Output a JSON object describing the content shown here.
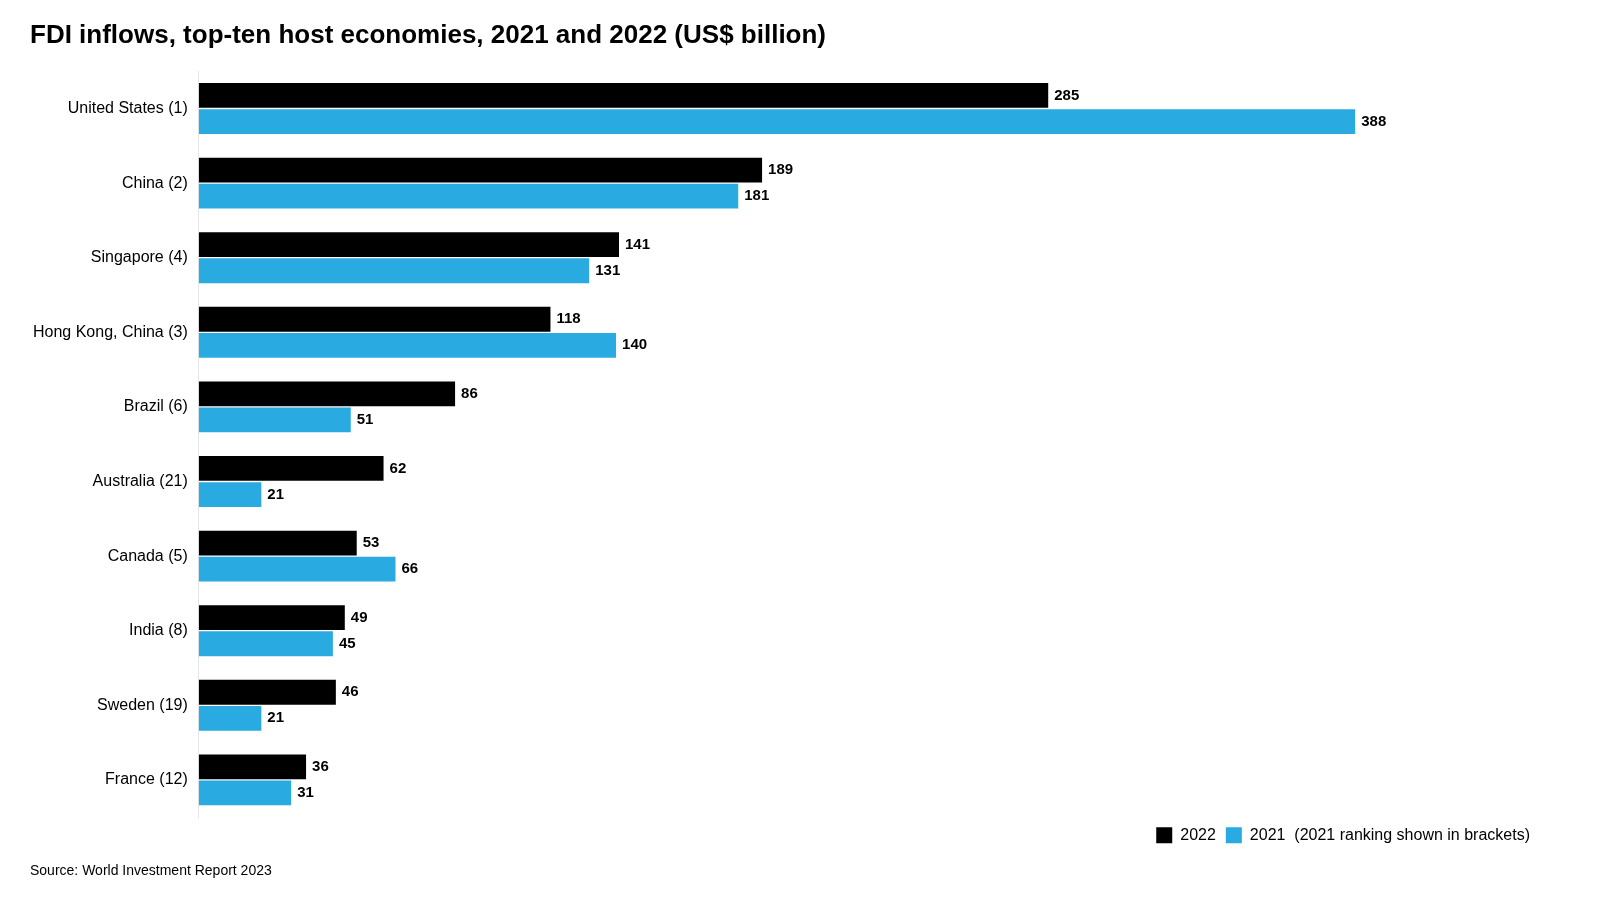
{
  "chart_data": {
    "type": "bar",
    "orientation": "horizontal",
    "title": "FDI inflows, top-ten host economies, 2021 and 2022 (US$ billion)",
    "annotations": [
      "Source: World Investment Report 2023"
    ],
    "categories": [
      "United States (1)",
      "China (2)",
      "Singapore (4)",
      "Hong Kong, China (3)",
      "Brazil (6)",
      "Australia (21)",
      "Canada (5)",
      "India (8)",
      "Sweden (19)",
      "France (12)"
    ],
    "series": [
      {
        "name": "2022",
        "color": "#000000",
        "values": [
          285,
          189,
          141,
          118,
          86,
          62,
          53,
          49,
          46,
          36
        ]
      },
      {
        "name": "2021  (2021 ranking shown in brackets)",
        "color": "#29abe2",
        "values": [
          388,
          181,
          131,
          140,
          51,
          21,
          66,
          45,
          21,
          31
        ]
      }
    ],
    "xlim": [
      0,
      450
    ],
    "tick_labels": "y",
    "grid": false,
    "legend": "lower right",
    "data_labels": true
  }
}
